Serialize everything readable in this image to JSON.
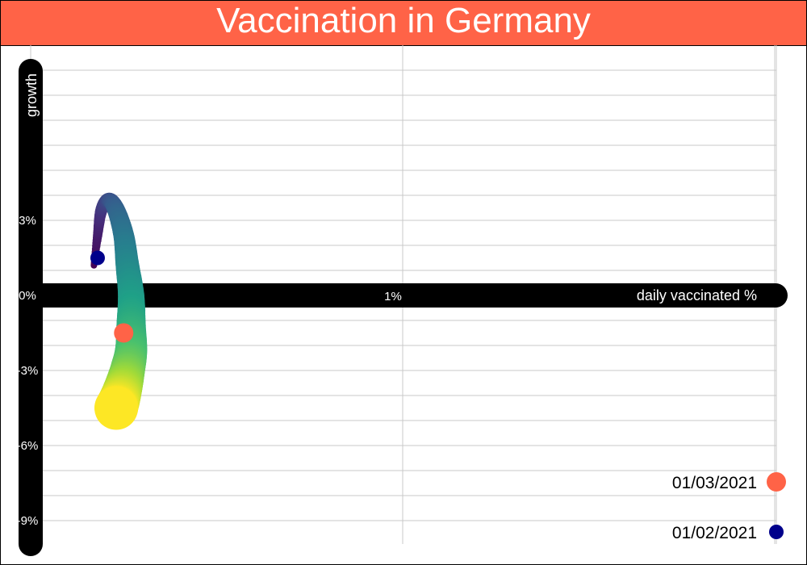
{
  "title": "Vaccination in Germany",
  "colors": {
    "title_bg": "#ff6347",
    "axis_bar": "#000000",
    "grid": "#c8c8c8",
    "start_point": "#00008b",
    "end_point": "#ff6347"
  },
  "chart_data": {
    "type": "scatter",
    "title": "Vaccination in Germany",
    "xlabel": "daily vaccinated %",
    "ylabel": "growth",
    "xlim": [
      0,
      1.1
    ],
    "ylim": [
      -10.5,
      10
    ],
    "x_ticks": [
      {
        "value": 0,
        "label": "0%"
      },
      {
        "value": 1,
        "label": "1%"
      }
    ],
    "y_ticks": [
      {
        "value": 3,
        "label": "3%"
      },
      {
        "value": 0,
        "label": "0%"
      },
      {
        "value": -3,
        "label": "-3%"
      },
      {
        "value": -6,
        "label": "-6%"
      },
      {
        "value": -9,
        "label": "-9%"
      }
    ],
    "grid": true,
    "trajectory": {
      "description": "daily path from 01/02/2021 to 01/03/2021, colour viridis (purple to yellow), size growing over time",
      "x": [
        0.17,
        0.18,
        0.19,
        0.21,
        0.23,
        0.25,
        0.26,
        0.27,
        0.27,
        0.27,
        0.26,
        0.25,
        0.24,
        0.23
      ],
      "y": [
        1.2,
        2.4,
        3.4,
        3.8,
        3.4,
        2.4,
        1.2,
        0,
        -1.2,
        -2.2,
        -3,
        -3.6,
        -4.1,
        -4.5
      ]
    },
    "points": [
      {
        "label": "01/02/2021",
        "x": 0.18,
        "y": 1.5,
        "color": "#00008b"
      },
      {
        "label": "01/03/2021",
        "x": 0.25,
        "y": -1.5,
        "color": "#ff6347"
      }
    ],
    "legend": {
      "position": "bottom-right",
      "entries": [
        {
          "label": "01/03/2021",
          "color": "#ff6347"
        },
        {
          "label": "01/02/2021",
          "color": "#00008b"
        }
      ]
    }
  }
}
